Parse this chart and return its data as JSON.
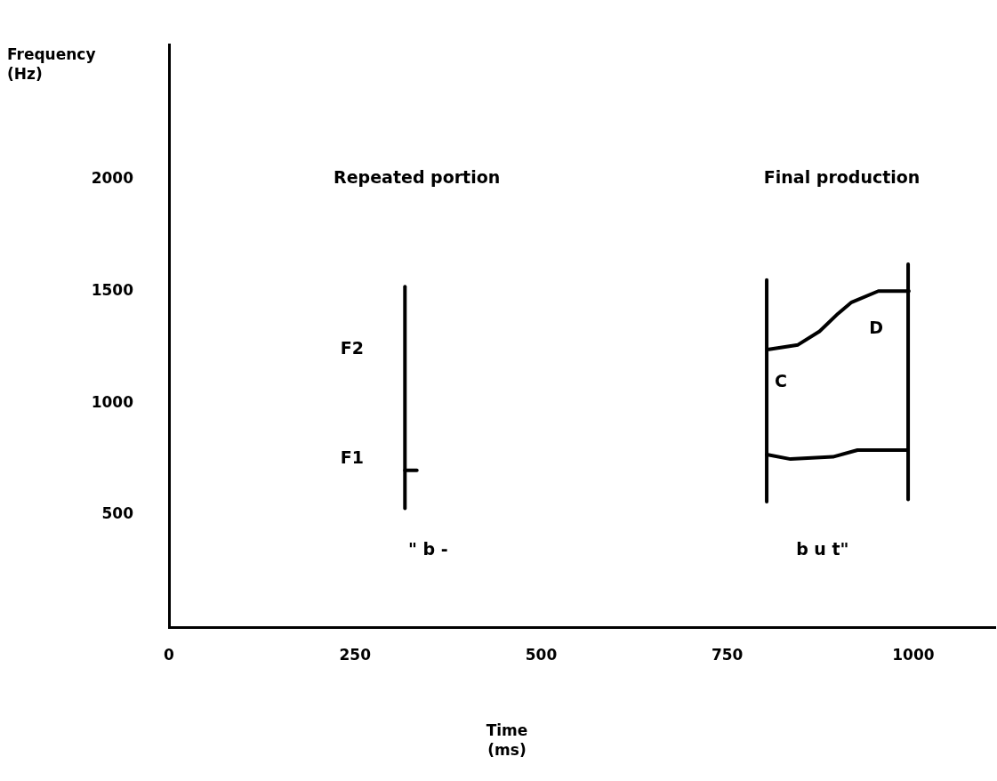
{
  "chart_data": {
    "type": "line",
    "xlabel": "Time\n(ms)",
    "ylabel": "Frequency\n(Hz)",
    "xlim": [
      0,
      1110
    ],
    "xticks": [
      0,
      250,
      500,
      750,
      1000
    ],
    "ylim": [
      0,
      2600
    ],
    "yticks": [
      500,
      1000,
      1500,
      2000
    ],
    "marker": "none",
    "series": [
      {
        "color": "#000000",
        "x": [
          317,
          317
        ],
        "values": [
          530,
          1520
        ]
      },
      {
        "color": "#000000",
        "x": [
          317,
          333
        ],
        "values": [
          700,
          700
        ]
      },
      {
        "color": "#000000",
        "x": [
          803,
          803
        ],
        "values": [
          560,
          1550
        ]
      },
      {
        "color": "#000000",
        "x": [
          993,
          993
        ],
        "values": [
          570,
          1620
        ]
      },
      {
        "color": "#000000",
        "x": [
          806,
          845,
          874,
          899,
          917,
          953,
          994
        ],
        "values": [
          1240,
          1260,
          1320,
          1400,
          1450,
          1500,
          1500
        ]
      },
      {
        "color": "#000000",
        "x": [
          803,
          835,
          892,
          925,
          992
        ],
        "values": [
          770,
          750,
          760,
          790,
          790
        ]
      }
    ],
    "annotations": [
      "Repeated portion",
      "Final production",
      "F2",
      "F1",
      "C",
      "D",
      "\" b -",
      "b u t\""
    ]
  }
}
